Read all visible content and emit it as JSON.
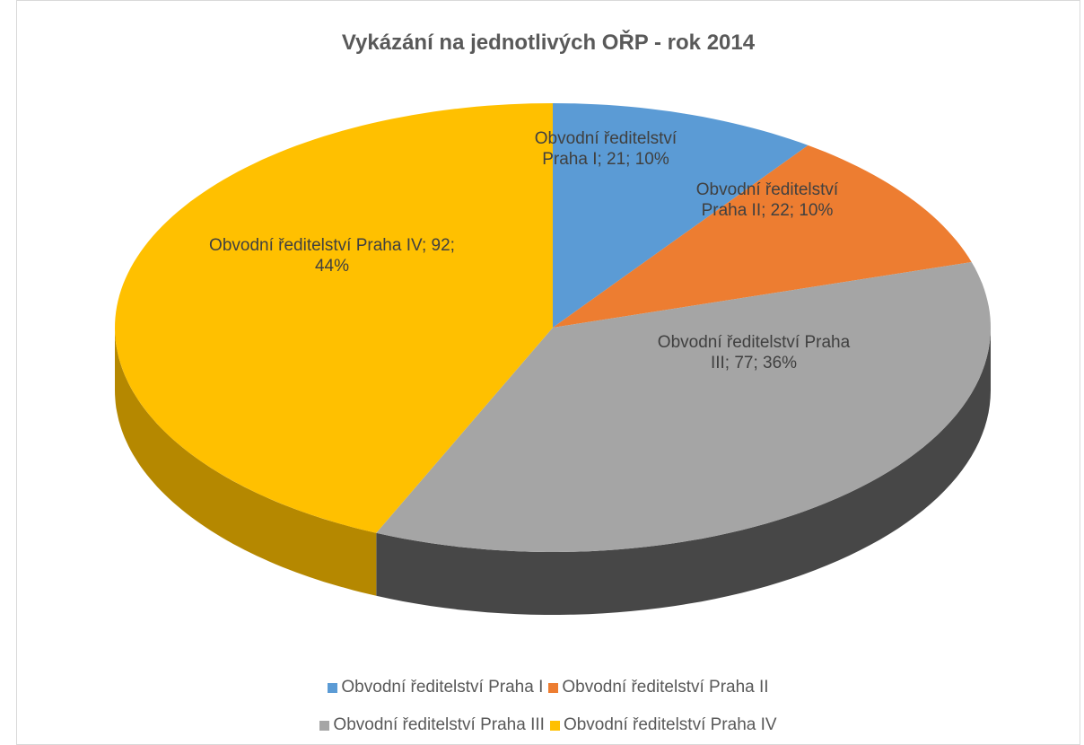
{
  "chart_data": {
    "type": "pie3d",
    "title": "Vykázání na jednotlivých OŘP - rok 2014",
    "categories": [
      "Obvodní ředitelství Praha I",
      "Obvodní ředitelství Praha II",
      "Obvodní ředitelství Praha III",
      "Obvodní ředitelství Praha IV"
    ],
    "values": [
      21,
      22,
      77,
      92
    ],
    "value_labels": [
      "Obvodní ředitelství Praha I; 21; 10%",
      "Obvodní ředitelství Praha II; 22; 10%",
      "Obvodní ředitelství Praha III; 77; 36%",
      "Obvodní ředitelství Praha IV; 92; 44%"
    ],
    "colors": [
      "#5b9bd5",
      "#ed7d31",
      "#a5a5a5",
      "#ffc000"
    ],
    "side_colors": [
      "#3d6f9e",
      "#a9551f",
      "#474747",
      "#b58800"
    ],
    "legend": "bottom"
  }
}
